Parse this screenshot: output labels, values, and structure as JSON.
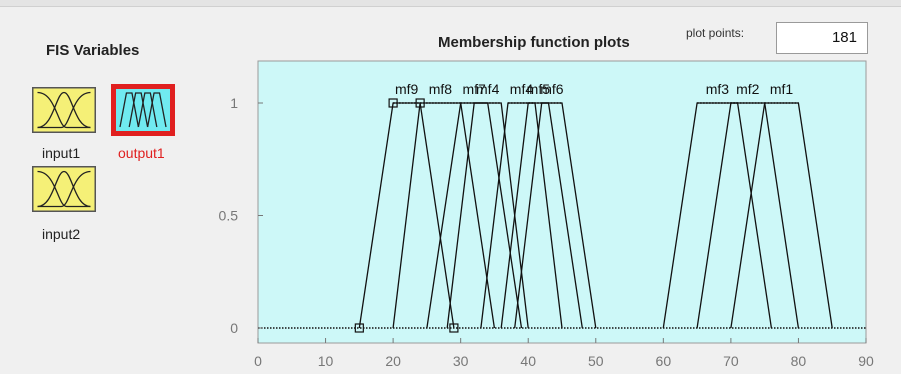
{
  "fis_variables": {
    "title": "FIS Variables",
    "inputs": [
      {
        "label": "input1",
        "color": "#f5f077"
      },
      {
        "label": "input2",
        "color": "#f5f077"
      }
    ],
    "output": {
      "label": "output1",
      "color": "#70eaf0",
      "border_color": "#e02020",
      "label_color": "#e02020"
    }
  },
  "plot": {
    "title": "Membership function plots",
    "plot_points_label": "plot points:",
    "plot_points_value": "181",
    "background_color": "#cdf8f8"
  },
  "chart_data": {
    "type": "line",
    "xlim": [
      0,
      90
    ],
    "ylim": [
      0,
      1
    ],
    "xticks": [
      "0",
      "10",
      "20",
      "30",
      "40",
      "50",
      "60",
      "70",
      "80",
      "90"
    ],
    "yticks": [
      "0",
      "0.5",
      "1"
    ],
    "series": [
      {
        "name": "mf9",
        "points": [
          [
            15,
            0
          ],
          [
            20,
            1
          ],
          [
            24,
            1
          ],
          [
            29,
            0
          ]
        ]
      },
      {
        "name": "mf8",
        "points": [
          [
            20,
            0
          ],
          [
            24,
            1
          ],
          [
            30,
            1
          ],
          [
            35,
            0
          ]
        ]
      },
      {
        "name": "mf7",
        "points": [
          [
            25,
            0
          ],
          [
            30,
            1
          ],
          [
            34,
            1
          ],
          [
            39,
            0
          ]
        ]
      },
      {
        "name": "mf4",
        "points": [
          [
            28,
            0
          ],
          [
            32,
            1
          ],
          [
            36,
            1
          ],
          [
            40,
            0
          ]
        ]
      },
      {
        "name": "mf4",
        "points": [
          [
            33,
            0
          ],
          [
            37,
            1
          ],
          [
            41,
            1
          ],
          [
            45,
            0
          ]
        ]
      },
      {
        "name": "mf5",
        "points": [
          [
            36,
            0
          ],
          [
            40,
            1
          ],
          [
            43,
            1
          ],
          [
            48,
            0
          ]
        ]
      },
      {
        "name": "mf6",
        "points": [
          [
            38,
            0
          ],
          [
            42,
            1
          ],
          [
            45,
            1
          ],
          [
            50,
            0
          ]
        ]
      },
      {
        "name": "mf3",
        "points": [
          [
            60,
            0
          ],
          [
            65,
            1
          ],
          [
            71,
            1
          ],
          [
            76,
            0
          ]
        ]
      },
      {
        "name": "mf2",
        "points": [
          [
            65,
            0
          ],
          [
            70,
            1
          ],
          [
            75,
            1
          ],
          [
            80,
            0
          ]
        ]
      },
      {
        "name": "mf1",
        "points": [
          [
            70,
            0
          ],
          [
            75,
            1
          ],
          [
            80,
            1
          ],
          [
            85,
            0
          ]
        ]
      }
    ],
    "markers": [
      [
        15,
        0
      ],
      [
        20,
        1
      ],
      [
        24,
        1
      ],
      [
        29,
        0
      ]
    ]
  }
}
